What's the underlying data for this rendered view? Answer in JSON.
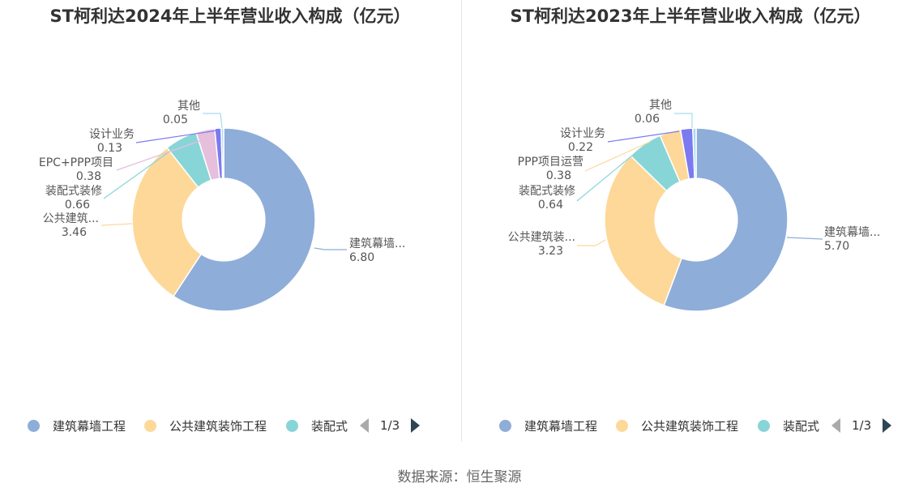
{
  "source_text": "数据来源：恒生聚源",
  "legend_labels": [
    "建筑幕墙工程",
    "公共建筑装饰工程",
    "装配式"
  ],
  "legend_colors": [
    "#8eadd9",
    "#fed898",
    "#88d5d7"
  ],
  "legend_page": "1/3",
  "chart_data": [
    {
      "type": "pie",
      "title": "ST柯利达2024年上半年营业收入构成（亿元）",
      "inner_ratio": 0.45,
      "slices": [
        {
          "name": "建筑幕墙工程",
          "label": "建筑幕墙...",
          "value": 6.8,
          "value_text": "6.80",
          "color": "#8eadd9"
        },
        {
          "name": "公共建筑装饰工程",
          "label": "公共建筑...",
          "value": 3.46,
          "value_text": "3.46",
          "color": "#fed898"
        },
        {
          "name": "装配式装修",
          "label": "装配式装修",
          "value": 0.66,
          "value_text": "0.66",
          "color": "#88d5d7"
        },
        {
          "name": "EPC+PPP项目",
          "label": "EPC+PPP项目",
          "value": 0.38,
          "value_text": "0.38",
          "color": "#e6bfdd"
        },
        {
          "name": "设计业务",
          "label": "设计业务",
          "value": 0.13,
          "value_text": "0.13",
          "color": "#7b7af0"
        },
        {
          "name": "其他",
          "label": "其他",
          "value": 0.05,
          "value_text": "0.05",
          "color": "#a8d9f0"
        }
      ]
    },
    {
      "type": "pie",
      "title": "ST柯利达2023年上半年营业收入构成（亿元）",
      "inner_ratio": 0.45,
      "slices": [
        {
          "name": "建筑幕墙工程",
          "label": "建筑幕墙...",
          "value": 5.7,
          "value_text": "5.70",
          "color": "#8eadd9"
        },
        {
          "name": "公共建筑装饰工程",
          "label": "公共建筑装...",
          "value": 3.23,
          "value_text": "3.23",
          "color": "#fed898"
        },
        {
          "name": "装配式装修",
          "label": "装配式装修",
          "value": 0.64,
          "value_text": "0.64",
          "color": "#88d5d7"
        },
        {
          "name": "PPP项目运营",
          "label": "PPP项目运营",
          "value": 0.38,
          "value_text": "0.38",
          "color": "#fed898"
        },
        {
          "name": "设计业务",
          "label": "设计业务",
          "value": 0.22,
          "value_text": "0.22",
          "color": "#7b7af0"
        },
        {
          "name": "其他",
          "label": "其他",
          "value": 0.06,
          "value_text": "0.06",
          "color": "#a8d9f0"
        }
      ]
    }
  ]
}
